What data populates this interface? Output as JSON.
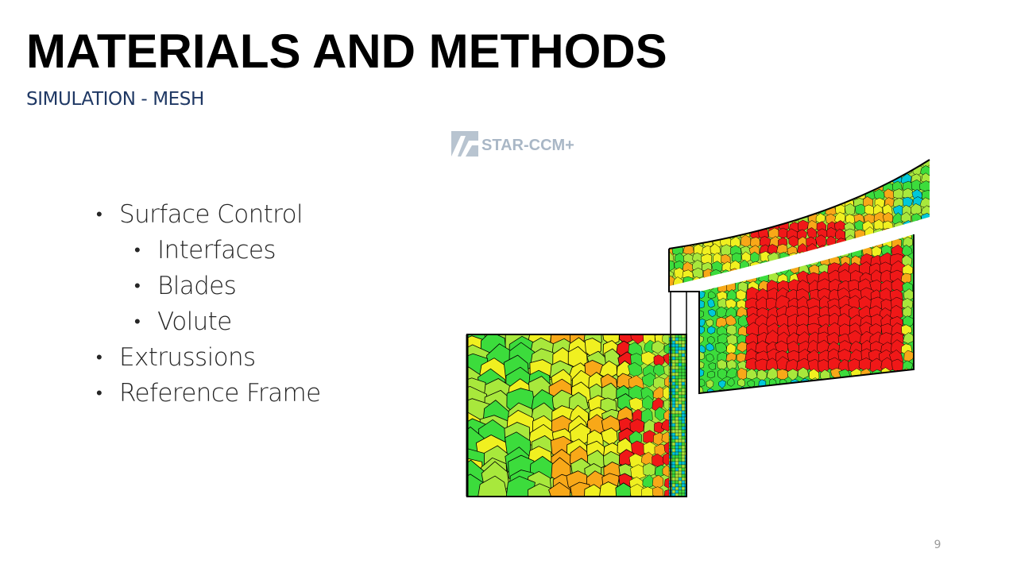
{
  "slide": {
    "title": "MATERIALS AND METHODS",
    "subtitle": "SIMULATION - MESH",
    "page_number": "9"
  },
  "bullets": [
    {
      "level": 1,
      "text": "Surface Control"
    },
    {
      "level": 2,
      "text": "Interfaces"
    },
    {
      "level": 2,
      "text": "Blades"
    },
    {
      "level": 2,
      "text": "Volute"
    },
    {
      "level": 1,
      "text": "Extrussions"
    },
    {
      "level": 1,
      "text": "Reference Frame"
    }
  ],
  "logo": {
    "text": "STAR-CCM+",
    "color": "#a9b7c6"
  },
  "mesh_colors": {
    "blue": "#00c8d8",
    "green": "#3cdc3c",
    "lime": "#a8e83c",
    "yellow": "#f0f020",
    "orange": "#f8a818",
    "red": "#f01818"
  }
}
